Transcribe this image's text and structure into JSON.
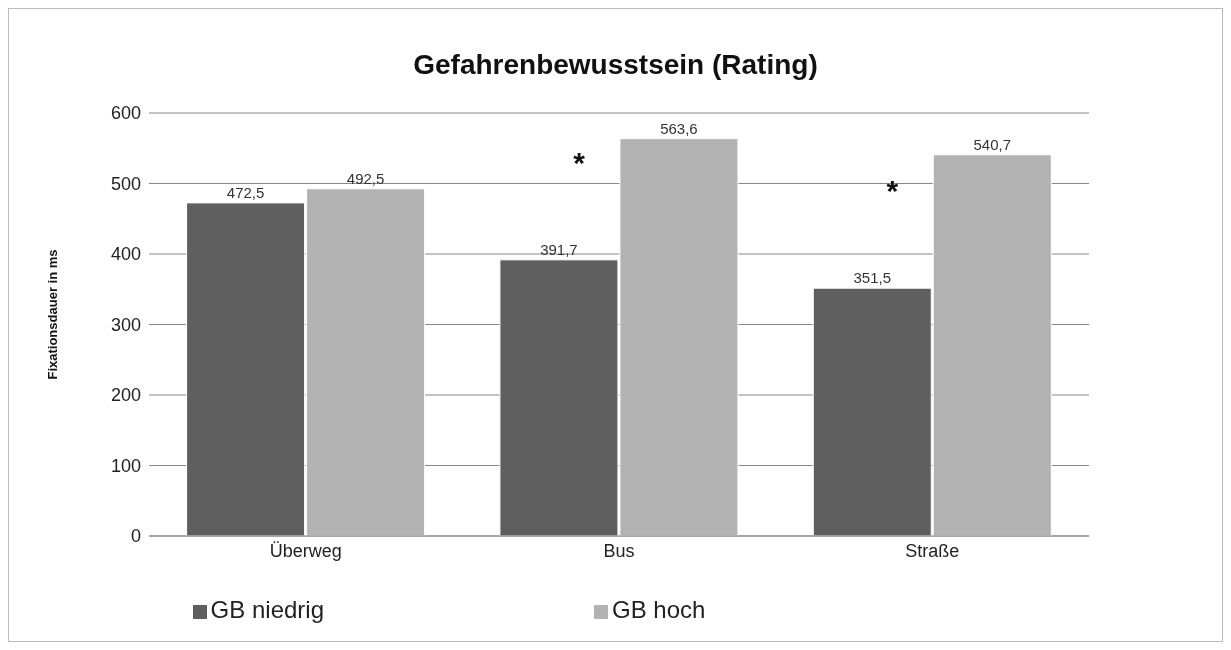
{
  "chart_data": {
    "type": "bar",
    "title": "Gefahrenbewusstsein (Rating)",
    "ylabel": "Fixationsdauer in ms",
    "categories": [
      "Überweg",
      "Bus",
      "Straße"
    ],
    "series": [
      {
        "name": "GB niedrig",
        "color": "#5f5f5f",
        "values": [
          472.5,
          391.7,
          351.5
        ],
        "value_labels": [
          "472,5",
          "391,7",
          "351,5"
        ]
      },
      {
        "name": "GB hoch",
        "color": "#b2b2b2",
        "values": [
          492.5,
          563.6,
          540.7
        ],
        "value_labels": [
          "492,5",
          "563,6",
          "540,7"
        ]
      }
    ],
    "ylim": [
      0,
      600
    ],
    "yticks": [
      0,
      100,
      200,
      300,
      400,
      500,
      600
    ],
    "grid": "y",
    "legend": "bottom",
    "annotations": [
      {
        "text": "*",
        "x": "Bus",
        "y": 530
      },
      {
        "text": "*",
        "x": "Straße",
        "y": 490
      }
    ]
  }
}
